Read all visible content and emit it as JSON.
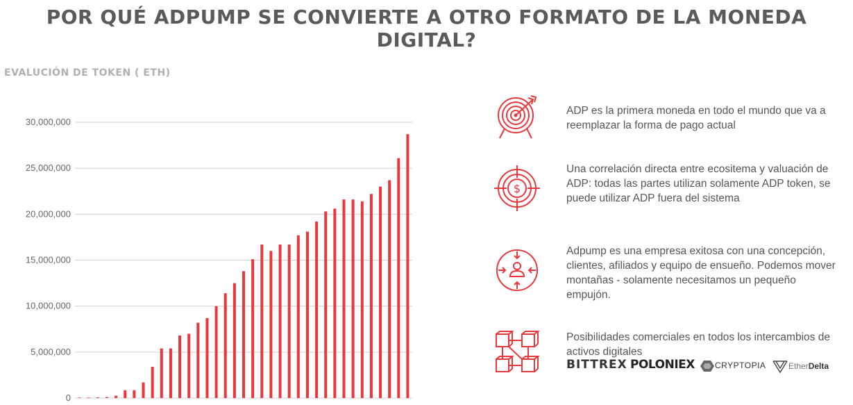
{
  "page": {
    "title": "POR QUÉ ADPUMP SE CONVIERTE A OTRO FORMATO DE LA MONEDA DIGITAL?"
  },
  "colors": {
    "accent": "#e8383d",
    "title": "#5a5a5a",
    "subtitle": "#b0b0b0",
    "grid": "#d0d0d0"
  },
  "chart_data": {
    "type": "bar",
    "title": "EVALUCIÓN DE TOKEN ( ETH)",
    "xlabel": "",
    "ylabel": "",
    "ylim": [
      0,
      30000000
    ],
    "yticks": [
      "0",
      "5,000,000",
      "10,000,000",
      "15,000,000",
      "20,000,000",
      "25,000,000",
      "30,000,000"
    ],
    "ytick_values": [
      0,
      5000000,
      10000000,
      15000000,
      20000000,
      25000000,
      30000000
    ],
    "grid": true,
    "legend": "none",
    "values": [
      50000,
      50000,
      80000,
      100000,
      250000,
      850000,
      850000,
      1700000,
      3400000,
      5400000,
      5400000,
      6800000,
      7000000,
      8200000,
      8700000,
      10000000,
      11400000,
      12500000,
      13800000,
      15100000,
      16700000,
      16000000,
      16700000,
      16700000,
      17700000,
      18100000,
      19200000,
      20300000,
      20600000,
      21600000,
      21600000,
      21400000,
      22200000,
      23000000,
      23700000,
      26100000,
      28700000
    ]
  },
  "features": [
    {
      "icon": "target-arrow-icon",
      "text": "ADP es la primera moneda en todo el mundo que va a reemplazar la forma de pago actual"
    },
    {
      "icon": "crosshair-dollar-icon",
      "text": "Una correlación directa entre ecositema y valuación de ADP: todas las partes utilizan solamente ADP token, se puede utilizar ADP fuera del sistema"
    },
    {
      "icon": "person-arrows-icon",
      "text": "Adpump es una empresa exitosa con una concepción, clientes, afiliados y equipo de ensueño. Podemos mover montañas - solamente necesitamos un pequeño empujón."
    },
    {
      "icon": "blockchain-cubes-icon",
      "text": "Posibilidades comerciales en todos los intercambios de activos digitales"
    }
  ],
  "exchanges": {
    "bittrex": "BITTREX",
    "poloniex": "POLONIEX",
    "cryptopia": "CRYPTOPIA",
    "etherdelta_prefix": "Ether",
    "etherdelta_suffix": "Delta"
  }
}
